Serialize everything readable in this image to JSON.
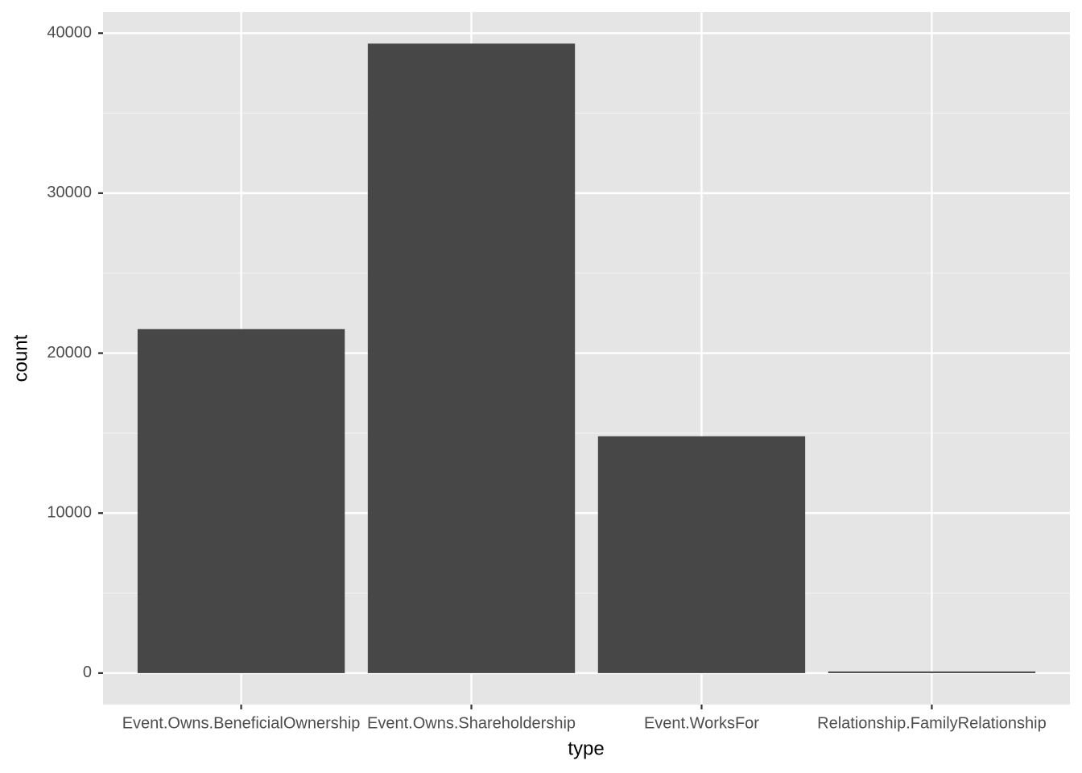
{
  "chart_data": {
    "type": "bar",
    "x_label": "type",
    "y_label": "count",
    "categories": [
      "Event.Owns.BeneficialOwnership",
      "Event.Owns.Shareholdership",
      "Event.WorksFor",
      "Relationship.FamilyRelationship"
    ],
    "values": [
      21500,
      39350,
      14800,
      100
    ],
    "color": "#474747",
    "ylim": [
      -1968,
      41318
    ],
    "yticks": [
      0,
      10000,
      20000,
      30000,
      40000
    ],
    "minor_yticks": [
      5000,
      15000,
      25000,
      35000
    ],
    "grid": true
  }
}
